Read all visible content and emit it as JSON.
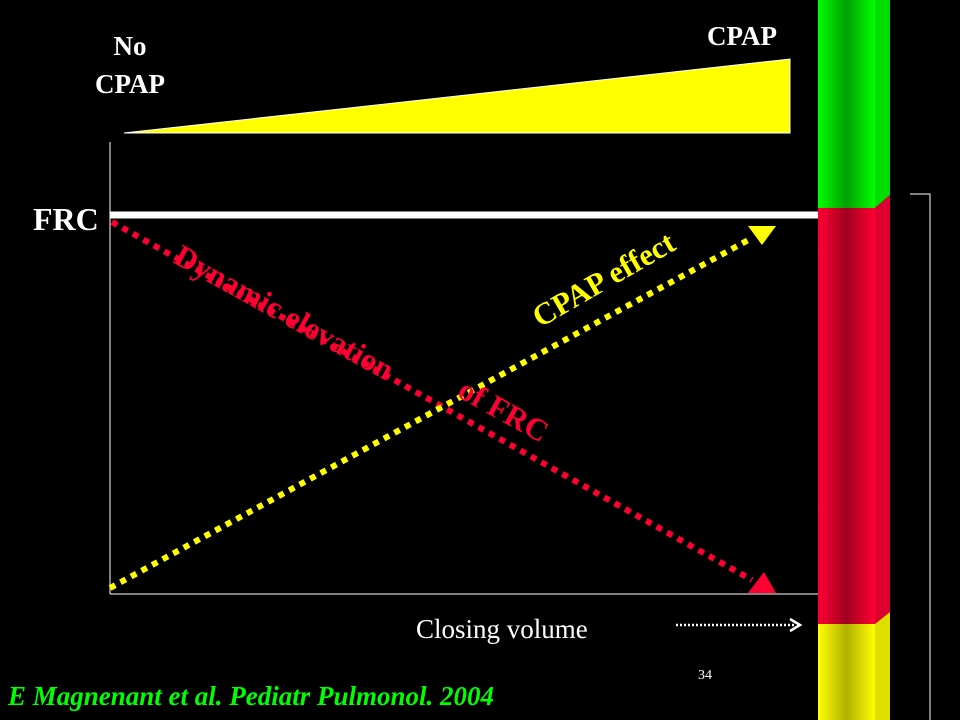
{
  "labels": {
    "no_cpap_line1": "No",
    "no_cpap_line2": "CPAP",
    "cpap": "CPAP",
    "frc": "FRC",
    "dynamic_elevation": "Dynamic elevation",
    "of_frc": "of FRC",
    "cpap_effect": "CPAP effect",
    "closing_volume": "Closing volume"
  },
  "footer": {
    "citation": "E Magnenant et al. Pediatr Pulmonol. 2004",
    "page_number": "34"
  },
  "colors": {
    "background": "#000000",
    "yellow": "#ffff00",
    "red": "#ff0033",
    "green": "#00ff00",
    "citation": "#00ff00"
  }
}
